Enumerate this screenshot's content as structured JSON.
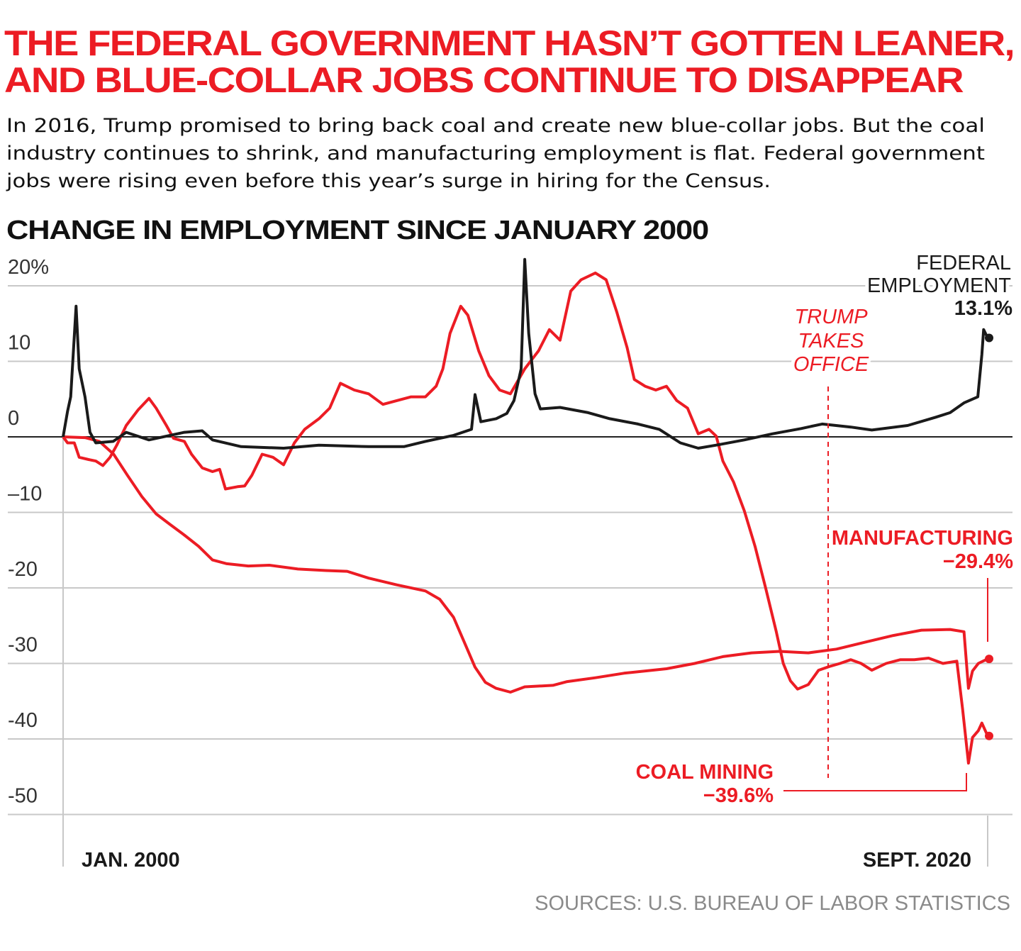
{
  "title_lines": [
    "THE FEDERAL GOVERNMENT HASN’T GOTTEN LEANER,",
    "AND  BLUE-COLLAR JOBS CONTINUE TO DISAPPEAR"
  ],
  "subtitle_lines": [
    "In 2016, Trump promised to bring back coal and create new blue-collar jobs. But the coal",
    "industry continues to shrink, and manufacturing employment is flat. Federal government",
    "jobs were rising even before this year’s surge in hiring for the Census."
  ],
  "source": "SOURCES: U.S. BUREAU OF LABOR STATISTICS",
  "colors": {
    "title": "#ec1c24",
    "red": "#ec1c24",
    "black": "#1a1a1a",
    "grid": "#c8c8c8",
    "source": "#8a8a8a"
  },
  "chart_data": {
    "type": "line",
    "title": "CHANGE IN EMPLOYMENT SINCE JANUARY 2000",
    "ylabel": "",
    "xlabel": "",
    "xlim": [
      2000.0,
      2020.67
    ],
    "ylim": [
      -50,
      20
    ],
    "grid": true,
    "yticks": [
      {
        "value": 20,
        "label": "20%"
      },
      {
        "value": 10,
        "label": "10"
      },
      {
        "value": 0,
        "label": "0"
      },
      {
        "value": -10,
        "label": "–10"
      },
      {
        "value": -20,
        "label": "-20"
      },
      {
        "value": -30,
        "label": "-30"
      },
      {
        "value": -40,
        "label": "-40"
      },
      {
        "value": -50,
        "label": "-50"
      }
    ],
    "xticks": [
      {
        "value": 2000.0,
        "label": "JAN. 2000"
      },
      {
        "value": 2020.67,
        "label": "SEPT. 2020"
      }
    ],
    "annotations": {
      "trump": {
        "x": 2017.08,
        "lines": [
          "TRUMP",
          "TAKES",
          "OFFICE"
        ]
      },
      "federal": {
        "lines": [
          "FEDERAL",
          "EMPLOYMENT"
        ],
        "value": "13.1%"
      },
      "manufacturing": {
        "name": "MANUFACTURING",
        "value": "−29.4%"
      },
      "coal": {
        "name": "COAL MINING",
        "value": "−39.6%"
      }
    },
    "series": [
      {
        "name": "FEDERAL EMPLOYMENT",
        "color": "#1a1a1a",
        "x": [
          2000,
          2000.1,
          2000.17,
          2000.29,
          2000.36,
          2000.49,
          2000.6,
          2000.73,
          2001.12,
          2001.41,
          2001.92,
          2002.71,
          2003.11,
          2003.34,
          2003.98,
          2004.93,
          2005.72,
          2006.83,
          2007.62,
          2008.1,
          2008.73,
          2009.13,
          2009.21,
          2009.34,
          2009.68,
          2009.92,
          2010.08,
          2010.24,
          2010.32,
          2010.41,
          2010.55,
          2010.67,
          2011.11,
          2011.74,
          2012.22,
          2012.85,
          2013.33,
          2013.8,
          2014.2,
          2014.6,
          2015.23,
          2015.86,
          2016.5,
          2016.97,
          2017.61,
          2018.08,
          2018.88,
          2019.51,
          2019.83,
          2020.14,
          2020.45,
          2020.54,
          2020.58,
          2020.67
        ],
        "y": [
          0,
          3.4,
          5.3,
          17.3,
          9.0,
          5.3,
          0.6,
          -0.8,
          -0.6,
          0.6,
          -0.4,
          0.6,
          0.8,
          -0.4,
          -1.3,
          -1.5,
          -1.1,
          -1.3,
          -1.3,
          -0.6,
          0.2,
          1.0,
          5.6,
          2.0,
          2.4,
          3.1,
          4.8,
          9.0,
          23.5,
          13.7,
          5.7,
          3.7,
          3.9,
          3.2,
          2.4,
          1.7,
          1.0,
          -0.8,
          -1.5,
          -1.1,
          -0.4,
          0.4,
          1.1,
          1.7,
          1.3,
          0.9,
          1.5,
          2.6,
          3.2,
          4.5,
          5.3,
          10.9,
          14.2,
          13.1
        ]
      },
      {
        "name": "MANUFACTURING",
        "color": "#ec1c24",
        "x": [
          2000,
          2000.49,
          2000.81,
          2001.13,
          2001.44,
          2001.76,
          2002.08,
          2002.39,
          2002.71,
          2003.03,
          2003.34,
          2003.66,
          2004.14,
          2004.61,
          2005.25,
          2005.88,
          2006.35,
          2006.83,
          2007.46,
          2008.1,
          2008.42,
          2008.73,
          2008.97,
          2009.21,
          2009.44,
          2009.68,
          2010.0,
          2010.32,
          2010.95,
          2011.27,
          2011.9,
          2012.54,
          2013.49,
          2014.12,
          2014.75,
          2015.39,
          2016.02,
          2016.66,
          2017.29,
          2017.92,
          2018.56,
          2019.19,
          2019.83,
          2020.14,
          2020.24,
          2020.33,
          2020.46,
          2020.67
        ],
        "y": [
          0,
          -0.1,
          -0.6,
          -2.3,
          -5.1,
          -7.9,
          -10.2,
          -11.6,
          -13.0,
          -14.5,
          -16.3,
          -16.8,
          -17.1,
          -17.0,
          -17.5,
          -17.7,
          -17.8,
          -18.7,
          -19.6,
          -20.4,
          -21.5,
          -23.9,
          -27.2,
          -30.5,
          -32.5,
          -33.3,
          -33.8,
          -33.1,
          -32.9,
          -32.4,
          -31.9,
          -31.3,
          -30.7,
          -30.0,
          -29.1,
          -28.6,
          -28.4,
          -28.6,
          -28.1,
          -27.2,
          -26.3,
          -25.6,
          -25.5,
          -25.8,
          -33.3,
          -31.0,
          -30.0,
          -29.4
        ]
      },
      {
        "name": "COAL MINING",
        "color": "#ec1c24",
        "x": [
          2000,
          2000.1,
          2000.25,
          2000.36,
          2000.57,
          2000.73,
          2000.89,
          2001.05,
          2001.2,
          2001.41,
          2001.68,
          2001.92,
          2002.08,
          2002.31,
          2002.47,
          2002.71,
          2002.87,
          2003.11,
          2003.34,
          2003.5,
          2003.63,
          2003.9,
          2004.06,
          2004.22,
          2004.45,
          2004.69,
          2004.93,
          2005.17,
          2005.4,
          2005.72,
          2005.96,
          2006.2,
          2006.51,
          2006.83,
          2007.15,
          2007.46,
          2007.78,
          2008.1,
          2008.34,
          2008.49,
          2008.65,
          2008.89,
          2009.05,
          2009.29,
          2009.52,
          2009.76,
          2010.0,
          2010.32,
          2010.63,
          2010.87,
          2011.11,
          2011.35,
          2011.58,
          2011.9,
          2012.14,
          2012.38,
          2012.61,
          2012.77,
          2013.01,
          2013.25,
          2013.49,
          2013.72,
          2013.96,
          2014.2,
          2014.44,
          2014.6,
          2014.75,
          2014.99,
          2015.23,
          2015.47,
          2015.71,
          2015.94,
          2016.1,
          2016.26,
          2016.42,
          2016.66,
          2016.89,
          2017.13,
          2017.37,
          2017.61,
          2017.84,
          2018.08,
          2018.4,
          2018.72,
          2019.03,
          2019.35,
          2019.67,
          2019.98,
          2020.11,
          2020.24,
          2020.33,
          2020.46,
          2020.54,
          2020.67
        ],
        "y": [
          0,
          -0.8,
          -0.8,
          -2.7,
          -3.0,
          -3.2,
          -3.8,
          -2.7,
          -1.1,
          1.5,
          3.6,
          5.1,
          3.8,
          1.5,
          -0.2,
          -0.6,
          -2.3,
          -4.1,
          -4.6,
          -4.3,
          -6.9,
          -6.6,
          -6.5,
          -5.1,
          -2.3,
          -2.7,
          -3.7,
          -0.8,
          1.0,
          2.4,
          3.8,
          7.1,
          6.2,
          5.7,
          4.3,
          4.8,
          5.3,
          5.3,
          6.7,
          9.0,
          13.7,
          17.3,
          16.1,
          11.4,
          8.1,
          6.2,
          5.7,
          9.0,
          11.4,
          14.2,
          12.8,
          19.3,
          20.8,
          21.7,
          20.8,
          16.5,
          11.8,
          7.6,
          6.7,
          6.2,
          6.7,
          4.8,
          3.8,
          0.4,
          1.0,
          0.1,
          -3.2,
          -6.0,
          -9.8,
          -14.5,
          -20.1,
          -25.7,
          -30.0,
          -32.3,
          -33.4,
          -32.8,
          -30.9,
          -30.4,
          -30.0,
          -29.5,
          -30.0,
          -30.9,
          -30.0,
          -29.5,
          -29.5,
          -29.3,
          -30.0,
          -29.7,
          -36.1,
          -43.2,
          -39.8,
          -38.9,
          -37.9,
          -39.6
        ]
      }
    ]
  }
}
